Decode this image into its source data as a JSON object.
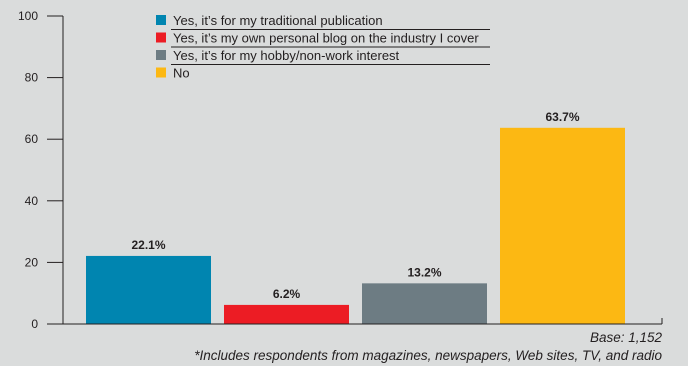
{
  "chart_data": {
    "type": "bar",
    "categories": [
      "Yes, it’s for my traditional publication",
      "Yes, it’s my own personal blog on the industry I cover",
      "Yes, it’s for my hobby/non-work interest",
      "No"
    ],
    "values": [
      22.1,
      6.2,
      13.2,
      63.7
    ],
    "value_labels": [
      "22.1%",
      "6.2%",
      "13.2%",
      "63.7%"
    ],
    "colors": [
      "#0085b0",
      "#ec1c24",
      "#6d7c83",
      "#fcb813"
    ],
    "ylim": [
      0,
      100
    ],
    "yticks": [
      0,
      20,
      40,
      60,
      80,
      100
    ],
    "grid": false,
    "legend_position": "top-center"
  },
  "base_note": "Base: 1,152",
  "footnote": "*Includes respondents from magazines, newspapers, Web sites, TV, and radio"
}
